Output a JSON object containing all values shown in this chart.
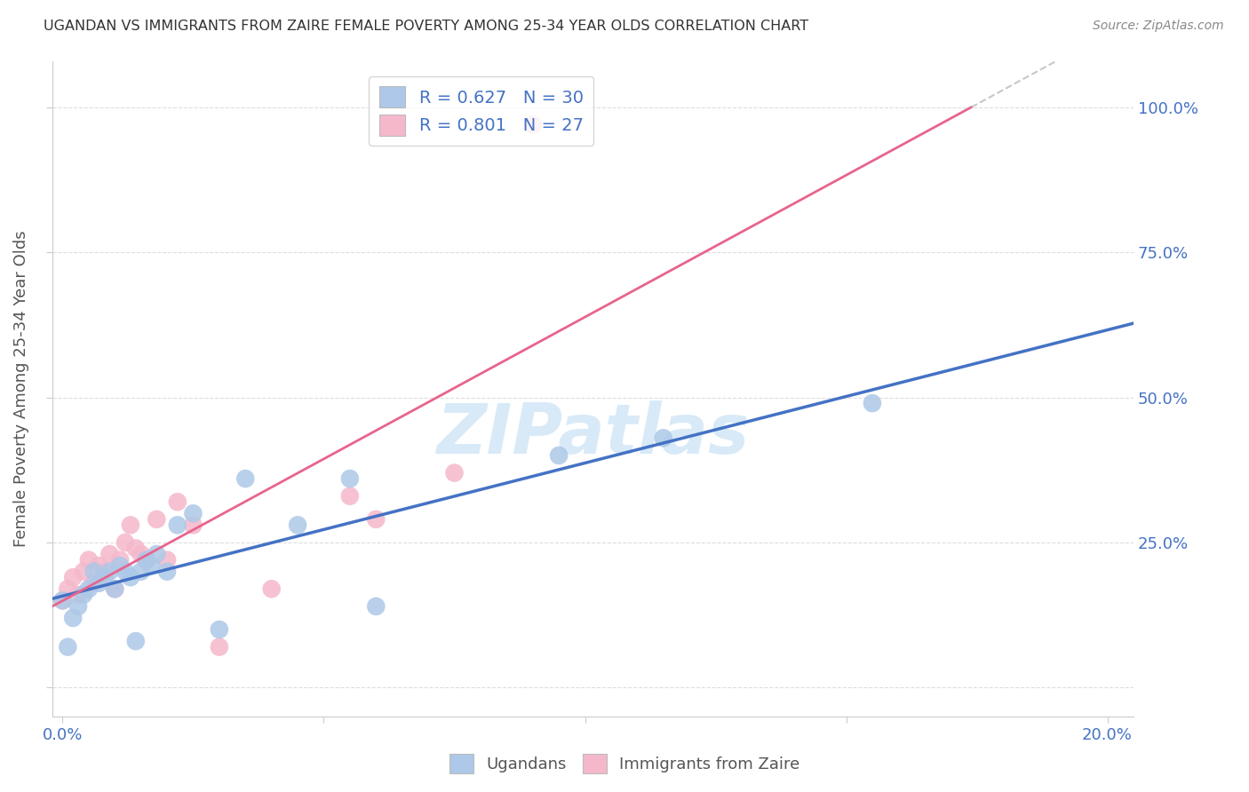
{
  "title": "UGANDAN VS IMMIGRANTS FROM ZAIRE FEMALE POVERTY AMONG 25-34 YEAR OLDS CORRELATION CHART",
  "source": "Source: ZipAtlas.com",
  "ylabel": "Female Poverty Among 25-34 Year Olds",
  "xlim": [
    -0.002,
    0.205
  ],
  "ylim": [
    -0.05,
    1.08
  ],
  "x_ticks": [
    0.0,
    0.05,
    0.1,
    0.15,
    0.2
  ],
  "x_tick_labels": [
    "0.0%",
    "",
    "",
    "",
    "20.0%"
  ],
  "y_ticks": [
    0.0,
    0.25,
    0.5,
    0.75,
    1.0
  ],
  "y_tick_labels_right": [
    "",
    "25.0%",
    "50.0%",
    "75.0%",
    "100.0%"
  ],
  "ugandan_color": "#adc8e8",
  "zaire_color": "#f5b8cb",
  "ugandan_line_color": "#4472c4",
  "zaire_line_color": "#e8648c",
  "zaire_extrap_color": "#b0b0b0",
  "legend_text_color_dark": "#333333",
  "legend_num_color": "#4472c4",
  "watermark_color": "#d8eaf8",
  "R_ugandan": 0.627,
  "N_ugandan": 30,
  "R_zaire": 0.801,
  "N_zaire": 27,
  "ugandan_x": [
    0.0,
    0.001,
    0.002,
    0.003,
    0.004,
    0.005,
    0.006,
    0.007,
    0.008,
    0.009,
    0.01,
    0.011,
    0.012,
    0.013,
    0.014,
    0.015,
    0.016,
    0.017,
    0.018,
    0.02,
    0.022,
    0.025,
    0.03,
    0.035,
    0.045,
    0.055,
    0.06,
    0.095,
    0.115,
    0.155
  ],
  "ugandan_y": [
    0.15,
    0.07,
    0.12,
    0.14,
    0.16,
    0.17,
    0.2,
    0.18,
    0.19,
    0.2,
    0.17,
    0.21,
    0.2,
    0.19,
    0.08,
    0.2,
    0.22,
    0.21,
    0.23,
    0.2,
    0.28,
    0.3,
    0.1,
    0.36,
    0.28,
    0.36,
    0.14,
    0.4,
    0.43,
    0.49
  ],
  "zaire_x": [
    0.0,
    0.001,
    0.002,
    0.003,
    0.004,
    0.005,
    0.006,
    0.007,
    0.008,
    0.009,
    0.01,
    0.011,
    0.012,
    0.013,
    0.014,
    0.015,
    0.016,
    0.018,
    0.02,
    0.022,
    0.025,
    0.03,
    0.04,
    0.055,
    0.06,
    0.075,
    0.09
  ],
  "zaire_y": [
    0.15,
    0.17,
    0.19,
    0.16,
    0.2,
    0.22,
    0.18,
    0.21,
    0.2,
    0.23,
    0.17,
    0.22,
    0.25,
    0.28,
    0.24,
    0.23,
    0.22,
    0.29,
    0.22,
    0.32,
    0.28,
    0.07,
    0.17,
    0.33,
    0.29,
    0.37,
    0.97
  ],
  "bg_color": "#ffffff",
  "grid_color": "#dddddd",
  "axis_tick_color": "#4472c4",
  "title_color": "#333333",
  "ylabel_color": "#555555",
  "bottom_legend_color": "#555555",
  "ugandan_label": "Ugandans",
  "zaire_label": "Immigrants from Zaire"
}
